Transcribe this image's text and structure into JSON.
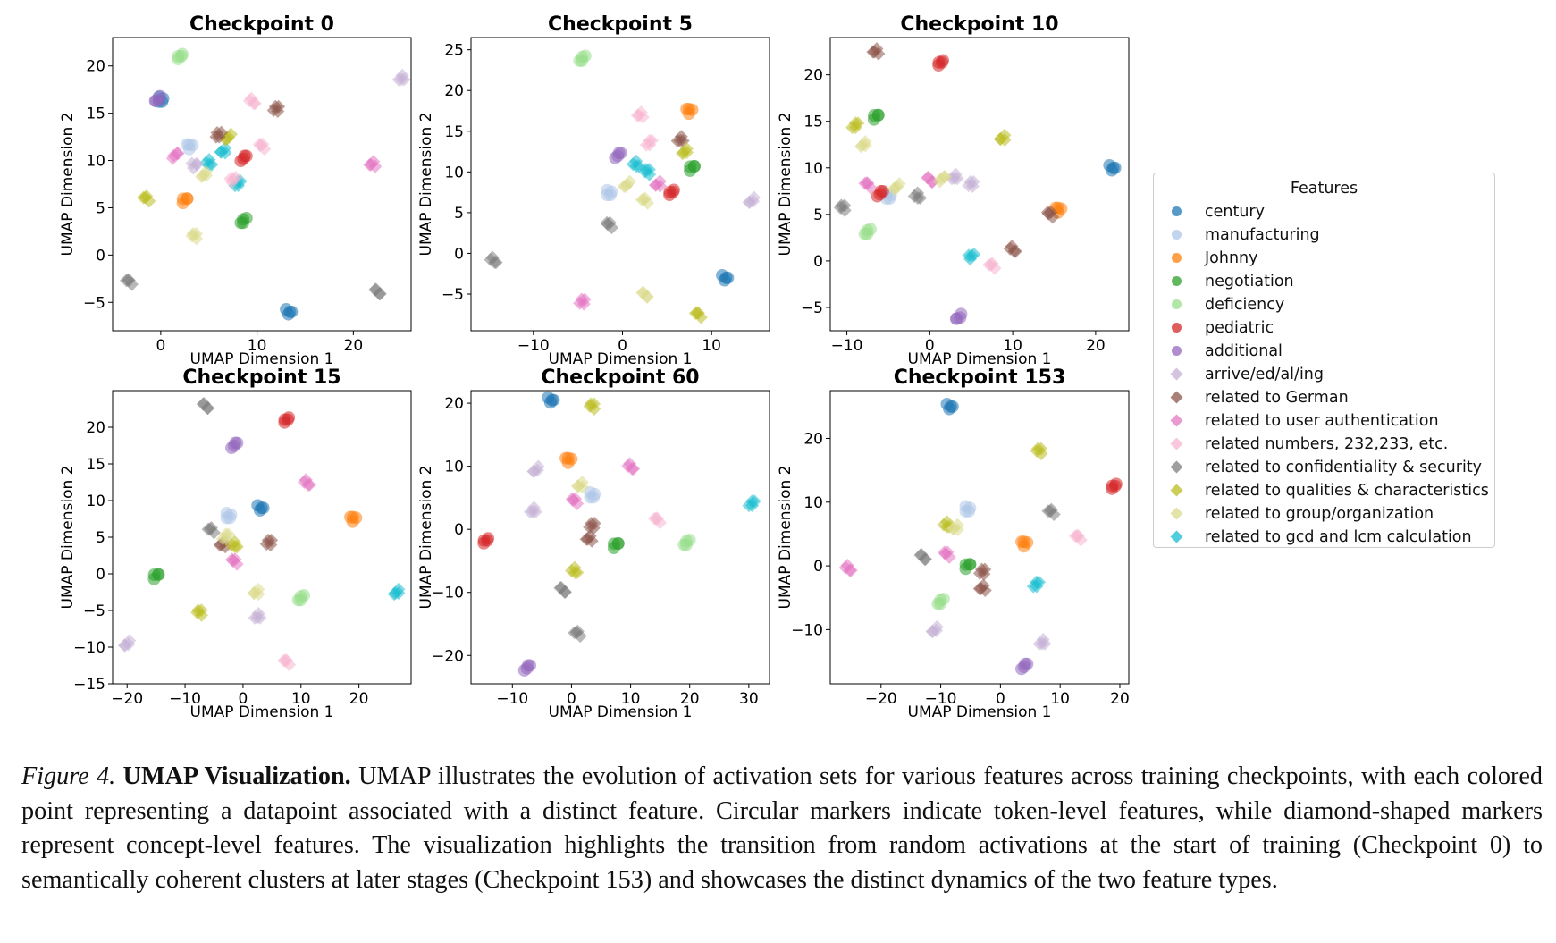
{
  "legend": {
    "title": "Features",
    "items": [
      {
        "label": "century",
        "color": "#1f77b4",
        "marker": "circle"
      },
      {
        "label": "manufacturing",
        "color": "#aec7e8",
        "marker": "circle"
      },
      {
        "label": "Johnny",
        "color": "#ff7f0e",
        "marker": "circle"
      },
      {
        "label": "negotiation",
        "color": "#2ca02c",
        "marker": "circle"
      },
      {
        "label": "deficiency",
        "color": "#98df8a",
        "marker": "circle"
      },
      {
        "label": "pediatric",
        "color": "#d62728",
        "marker": "circle"
      },
      {
        "label": "additional",
        "color": "#9467bd",
        "marker": "circle"
      },
      {
        "label": "arrive/ed/al/ing",
        "color": "#c5b0d5",
        "marker": "diamond"
      },
      {
        "label": "related to German",
        "color": "#8c564b",
        "marker": "diamond"
      },
      {
        "label": "related to user authentication",
        "color": "#e377c2",
        "marker": "diamond"
      },
      {
        "label": "related numbers, 232,233, etc.",
        "color": "#f7b6d2",
        "marker": "diamond"
      },
      {
        "label": "related to confidentiality & security",
        "color": "#7f7f7f",
        "marker": "diamond"
      },
      {
        "label": "related to qualities & characteristics",
        "color": "#bcbd22",
        "marker": "diamond"
      },
      {
        "label": "related to group/organization",
        "color": "#dbdb8d",
        "marker": "diamond"
      },
      {
        "label": "related to gcd and lcm calculation",
        "color": "#17becf",
        "marker": "diamond"
      }
    ]
  },
  "caption": {
    "label": "Figure 4.",
    "title": "UMAP Visualization.",
    "text": "UMAP illustrates the evolution of activation sets for various features across training checkpoints, with each colored point representing a datapoint associated with a distinct feature.  Circular markers indicate token-level features, while diamond-shaped markers represent concept-level features. The visualization highlights the transition from random activations at the start of training (Checkpoint 0) to semantically coherent clusters at later stages (Checkpoint 153) and showcases the distinct dynamics of the two feature types."
  },
  "chart_data": [
    {
      "type": "scatter",
      "title": "Checkpoint 0",
      "xlabel": "UMAP Dimension 1",
      "ylabel": "UMAP Dimension 2",
      "xlim": [
        -5,
        26
      ],
      "ylim": [
        -8,
        23
      ],
      "xticks": [
        0,
        10,
        20
      ],
      "yticks": [
        -5,
        0,
        5,
        10,
        15,
        20
      ],
      "points": [
        {
          "x": 13.3,
          "y": -6,
          "label": "century"
        },
        {
          "x": 0,
          "y": 16.5,
          "label": "century"
        },
        {
          "x": 3,
          "y": 11.5,
          "label": "manufacturing"
        },
        {
          "x": 2.5,
          "y": 5.8,
          "label": "Johnny"
        },
        {
          "x": 8.6,
          "y": 3.7,
          "label": "negotiation"
        },
        {
          "x": 2,
          "y": 21,
          "label": "deficiency"
        },
        {
          "x": 8.6,
          "y": 10.2,
          "label": "pediatric"
        },
        {
          "x": -0.3,
          "y": 16.5,
          "label": "additional"
        },
        {
          "x": 25,
          "y": 18.7,
          "label": "arrive/ed/al/ing"
        },
        {
          "x": 12,
          "y": 15.4,
          "label": "related to German"
        },
        {
          "x": 22,
          "y": 9.6,
          "label": "related to user authentication"
        },
        {
          "x": 9.5,
          "y": 16.3,
          "label": "related numbers, 232,233, etc."
        },
        {
          "x": 10.5,
          "y": 11.5,
          "label": "related numbers, 232,233, etc."
        },
        {
          "x": -3.3,
          "y": -2.8,
          "label": "related to confidentiality & security"
        },
        {
          "x": 22.5,
          "y": -3.8,
          "label": "related to confidentiality & security"
        },
        {
          "x": -1.5,
          "y": 6,
          "label": "related to qualities & characteristics"
        },
        {
          "x": 3.5,
          "y": 2,
          "label": "related to group/organization"
        },
        {
          "x": 5,
          "y": 9.8,
          "label": "related to gcd and lcm calculation"
        },
        {
          "x": 6.5,
          "y": 11,
          "label": "related to gcd and lcm calculation"
        },
        {
          "x": 8,
          "y": 7.5,
          "label": "related to gcd and lcm calculation"
        },
        {
          "x": 4.5,
          "y": 8.5,
          "label": "related to group/organization"
        },
        {
          "x": 7,
          "y": 12.5,
          "label": "related to qualities & characteristics"
        },
        {
          "x": 1.5,
          "y": 10.5,
          "label": "related to user authentication"
        },
        {
          "x": 7.5,
          "y": 8,
          "label": "related numbers, 232,233, etc."
        },
        {
          "x": 6,
          "y": 12.8,
          "label": "related to German"
        },
        {
          "x": 3.5,
          "y": 9.5,
          "label": "arrive/ed/al/ing"
        }
      ]
    },
    {
      "type": "scatter",
      "title": "Checkpoint 5",
      "xlabel": "UMAP Dimension 1",
      "ylabel": "UMAP Dimension 2",
      "xlim": [
        -17,
        16.5
      ],
      "ylim": [
        -9.5,
        26.5
      ],
      "xticks": [
        -10,
        0,
        10
      ],
      "yticks": [
        -5,
        0,
        5,
        10,
        15,
        20,
        25
      ],
      "points": [
        {
          "x": 11.5,
          "y": -3,
          "label": "century"
        },
        {
          "x": -1.5,
          "y": 7.5,
          "label": "manufacturing"
        },
        {
          "x": 7.5,
          "y": 17.5,
          "label": "Johnny"
        },
        {
          "x": 7.8,
          "y": 10.5,
          "label": "negotiation"
        },
        {
          "x": -4.5,
          "y": 24,
          "label": "deficiency"
        },
        {
          "x": 5.5,
          "y": 7.5,
          "label": "pediatric"
        },
        {
          "x": -0.5,
          "y": 12,
          "label": "additional"
        },
        {
          "x": 14.5,
          "y": 6.5,
          "label": "arrive/ed/al/ing"
        },
        {
          "x": 6.5,
          "y": 14,
          "label": "related to German"
        },
        {
          "x": -4.5,
          "y": -6,
          "label": "related to user authentication"
        },
        {
          "x": 2,
          "y": 17,
          "label": "related numbers, 232,233, etc."
        },
        {
          "x": -14.5,
          "y": -0.8,
          "label": "related to confidentiality & security"
        },
        {
          "x": -1.5,
          "y": 3.5,
          "label": "related to confidentiality & security"
        },
        {
          "x": 8.5,
          "y": -7.5,
          "label": "related to qualities & characteristics"
        },
        {
          "x": 2.5,
          "y": -5,
          "label": "related to group/organization"
        },
        {
          "x": 2.5,
          "y": 6.5,
          "label": "related to group/organization"
        },
        {
          "x": 2.8,
          "y": 10,
          "label": "related to gcd and lcm calculation"
        },
        {
          "x": 1.5,
          "y": 11,
          "label": "related to gcd and lcm calculation"
        },
        {
          "x": 4,
          "y": 8.5,
          "label": "related to user authentication"
        },
        {
          "x": 3,
          "y": 13.5,
          "label": "related numbers, 232,233, etc."
        },
        {
          "x": 7,
          "y": 12.5,
          "label": "related to qualities & characteristics"
        },
        {
          "x": 0.5,
          "y": 8.5,
          "label": "related to group/organization"
        }
      ]
    },
    {
      "type": "scatter",
      "title": "Checkpoint 10",
      "xlabel": "UMAP Dimension 1",
      "ylabel": "UMAP Dimension 2",
      "xlim": [
        -12,
        24
      ],
      "ylim": [
        -7.5,
        24
      ],
      "xticks": [
        -10,
        0,
        10,
        20
      ],
      "yticks": [
        -5,
        0,
        5,
        10,
        15,
        20
      ],
      "points": [
        {
          "x": 22,
          "y": 10,
          "label": "century"
        },
        {
          "x": -5,
          "y": 7,
          "label": "manufacturing"
        },
        {
          "x": 15.5,
          "y": 5.5,
          "label": "Johnny"
        },
        {
          "x": -6.5,
          "y": 15.5,
          "label": "negotiation"
        },
        {
          "x": -7.5,
          "y": 3.2,
          "label": "deficiency"
        },
        {
          "x": 1.3,
          "y": 21.3,
          "label": "pediatric"
        },
        {
          "x": -6,
          "y": 7.2,
          "label": "pediatric"
        },
        {
          "x": 3.5,
          "y": -6,
          "label": "additional"
        },
        {
          "x": 3,
          "y": 9,
          "label": "arrive/ed/al/ing"
        },
        {
          "x": 5,
          "y": 8.2,
          "label": "arrive/ed/al/ing"
        },
        {
          "x": -6.5,
          "y": 22.5,
          "label": "related to German"
        },
        {
          "x": 10,
          "y": 1.3,
          "label": "related to German"
        },
        {
          "x": 14.5,
          "y": 5,
          "label": "related to German"
        },
        {
          "x": -7.5,
          "y": 8.2,
          "label": "related to user authentication"
        },
        {
          "x": 0,
          "y": 8.8,
          "label": "related to user authentication"
        },
        {
          "x": 7.5,
          "y": -0.5,
          "label": "related numbers, 232,233, etc."
        },
        {
          "x": -10.5,
          "y": 5.7,
          "label": "related to confidentiality & security"
        },
        {
          "x": -1.5,
          "y": 7,
          "label": "related to confidentiality & security"
        },
        {
          "x": 8.8,
          "y": 13.2,
          "label": "related to qualities & characteristics"
        },
        {
          "x": -9,
          "y": 14.5,
          "label": "related to qualities & characteristics"
        },
        {
          "x": -8,
          "y": 12.5,
          "label": "related to group/organization"
        },
        {
          "x": -4,
          "y": 8,
          "label": "related to group/organization"
        },
        {
          "x": 1.5,
          "y": 8.8,
          "label": "related to group/organization"
        },
        {
          "x": 5,
          "y": 0.5,
          "label": "related to gcd and lcm calculation"
        }
      ]
    },
    {
      "type": "scatter",
      "title": "Checkpoint 15",
      "xlabel": "UMAP Dimension 1",
      "ylabel": "UMAP Dimension 2",
      "xlim": [
        -22.5,
        29
      ],
      "ylim": [
        -15,
        25
      ],
      "xticks": [
        -20,
        -10,
        0,
        10,
        20
      ],
      "yticks": [
        -15,
        -10,
        -5,
        0,
        5,
        10,
        15,
        20
      ],
      "points": [
        {
          "x": 3,
          "y": 9,
          "label": "century"
        },
        {
          "x": -2.5,
          "y": 8,
          "label": "manufacturing"
        },
        {
          "x": 19,
          "y": 7.5,
          "label": "Johnny"
        },
        {
          "x": -15,
          "y": -0.3,
          "label": "negotiation"
        },
        {
          "x": 10,
          "y": -3.2,
          "label": "deficiency"
        },
        {
          "x": 7.5,
          "y": 21,
          "label": "pediatric"
        },
        {
          "x": -1.5,
          "y": 17.5,
          "label": "additional"
        },
        {
          "x": -20,
          "y": -9.5,
          "label": "arrive/ed/al/ing"
        },
        {
          "x": 2.5,
          "y": -5.8,
          "label": "arrive/ed/al/ing"
        },
        {
          "x": 4.5,
          "y": 4.2,
          "label": "related to German"
        },
        {
          "x": -3.5,
          "y": 4,
          "label": "related to German"
        },
        {
          "x": 11,
          "y": 12.5,
          "label": "related to user authentication"
        },
        {
          "x": -1.5,
          "y": 1.7,
          "label": "related to user authentication"
        },
        {
          "x": 7.5,
          "y": -12,
          "label": "related numbers, 232,233, etc."
        },
        {
          "x": -6.5,
          "y": 23,
          "label": "related to confidentiality & security"
        },
        {
          "x": -5.5,
          "y": 6,
          "label": "related to confidentiality & security"
        },
        {
          "x": -7.5,
          "y": -5.3,
          "label": "related to qualities & characteristics"
        },
        {
          "x": -1.5,
          "y": 4,
          "label": "related to qualities & characteristics"
        },
        {
          "x": 2.3,
          "y": -2.5,
          "label": "related to group/organization"
        },
        {
          "x": -3,
          "y": 5,
          "label": "related to group/organization"
        },
        {
          "x": 26.5,
          "y": -2.5,
          "label": "related to gcd and lcm calculation"
        }
      ]
    },
    {
      "type": "scatter",
      "title": "Checkpoint 60",
      "xlabel": "UMAP Dimension 1",
      "ylabel": "UMAP Dimension 2",
      "xlim": [
        -17,
        33.5
      ],
      "ylim": [
        -24.5,
        22
      ],
      "xticks": [
        -10,
        0,
        10,
        20,
        30
      ],
      "yticks": [
        -20,
        -10,
        0,
        10,
        20
      ],
      "points": [
        {
          "x": -3.5,
          "y": 20.5,
          "label": "century"
        },
        {
          "x": 3.5,
          "y": 5.5,
          "label": "manufacturing"
        },
        {
          "x": -0.5,
          "y": 11,
          "label": "Johnny"
        },
        {
          "x": 7.5,
          "y": -2.5,
          "label": "negotiation"
        },
        {
          "x": 19.5,
          "y": -2,
          "label": "deficiency"
        },
        {
          "x": -14.5,
          "y": -1.8,
          "label": "pediatric"
        },
        {
          "x": -7.5,
          "y": -22,
          "label": "additional"
        },
        {
          "x": -6,
          "y": 9.5,
          "label": "arrive/ed/al/ing"
        },
        {
          "x": -6.5,
          "y": 3,
          "label": "arrive/ed/al/ing"
        },
        {
          "x": 3.5,
          "y": 0.5,
          "label": "related to German"
        },
        {
          "x": 3,
          "y": -1.5,
          "label": "related to German"
        },
        {
          "x": 10,
          "y": 10,
          "label": "related to user authentication"
        },
        {
          "x": 0.5,
          "y": 4.5,
          "label": "related to user authentication"
        },
        {
          "x": 14.5,
          "y": 1.5,
          "label": "related numbers, 232,233, etc."
        },
        {
          "x": -1.5,
          "y": -9.5,
          "label": "related to confidentiality & security"
        },
        {
          "x": 1,
          "y": -16.5,
          "label": "related to confidentiality & security"
        },
        {
          "x": 3.5,
          "y": 19.5,
          "label": "related to qualities & characteristics"
        },
        {
          "x": 0.5,
          "y": -6.5,
          "label": "related to qualities & characteristics"
        },
        {
          "x": 1.5,
          "y": 7,
          "label": "related to group/organization"
        },
        {
          "x": 30.5,
          "y": 4,
          "label": "related to gcd and lcm calculation"
        }
      ]
    },
    {
      "type": "scatter",
      "title": "Checkpoint 153",
      "xlabel": "UMAP Dimension 1",
      "ylabel": "UMAP Dimension 2",
      "xlim": [
        -28.5,
        21.5
      ],
      "ylim": [
        -18.5,
        27.5
      ],
      "xticks": [
        -20,
        -10,
        0,
        10,
        20
      ],
      "yticks": [
        -10,
        0,
        10,
        20
      ],
      "points": [
        {
          "x": -8.5,
          "y": 25,
          "label": "century"
        },
        {
          "x": -5.5,
          "y": 9,
          "label": "manufacturing"
        },
        {
          "x": 4,
          "y": 3.5,
          "label": "Johnny"
        },
        {
          "x": -5.5,
          "y": 0,
          "label": "negotiation"
        },
        {
          "x": -10,
          "y": -5.5,
          "label": "deficiency"
        },
        {
          "x": 19,
          "y": 12.5,
          "label": "pediatric"
        },
        {
          "x": 4,
          "y": -15.8,
          "label": "additional"
        },
        {
          "x": -11,
          "y": -10,
          "label": "arrive/ed/al/ing"
        },
        {
          "x": 7,
          "y": -12,
          "label": "arrive/ed/al/ing"
        },
        {
          "x": -3,
          "y": -1,
          "label": "related to German"
        },
        {
          "x": -3,
          "y": -3.5,
          "label": "related to German"
        },
        {
          "x": -25.5,
          "y": -0.3,
          "label": "related to user authentication"
        },
        {
          "x": -9,
          "y": 1.8,
          "label": "related to user authentication"
        },
        {
          "x": 13,
          "y": 4.5,
          "label": "related numbers, 232,233, etc."
        },
        {
          "x": -13,
          "y": 1.5,
          "label": "related to confidentiality & security"
        },
        {
          "x": 8.5,
          "y": 8.5,
          "label": "related to confidentiality & security"
        },
        {
          "x": 6.5,
          "y": 18,
          "label": "related to qualities & characteristics"
        },
        {
          "x": -9,
          "y": 6.5,
          "label": "related to qualities & characteristics"
        },
        {
          "x": -7.5,
          "y": 6,
          "label": "related to group/organization"
        },
        {
          "x": 6,
          "y": -3,
          "label": "related to gcd and lcm calculation"
        }
      ]
    }
  ]
}
